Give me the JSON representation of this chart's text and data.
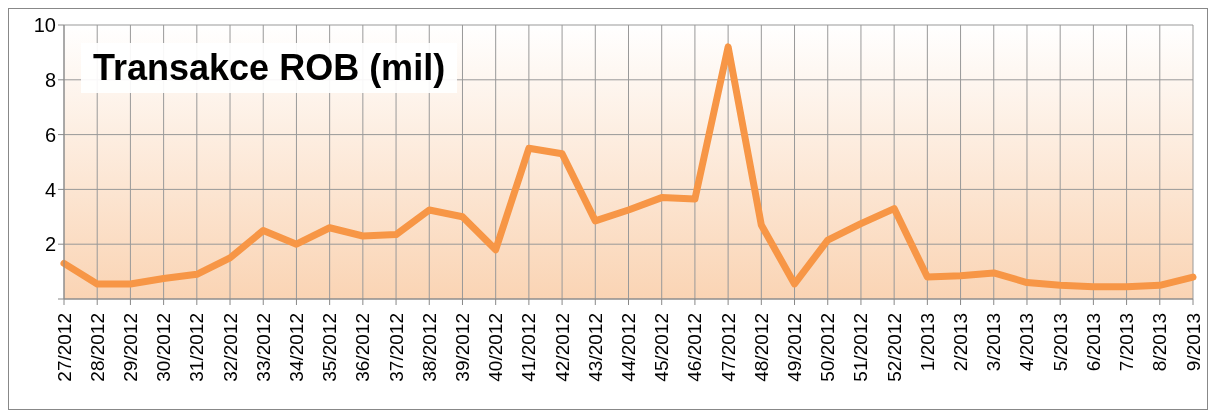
{
  "chart_data": {
    "type": "line",
    "title": "Transakce ROB (mil)",
    "categories": [
      "27/2012",
      "28/2012",
      "29/2012",
      "30/2012",
      "31/2012",
      "32/2012",
      "33/2012",
      "34/2012",
      "35/2012",
      "36/2012",
      "37/2012",
      "38/2012",
      "39/2012",
      "40/2012",
      "41/2012",
      "42/2012",
      "43/2012",
      "44/2012",
      "45/2012",
      "46/2012",
      "47/2012",
      "48/2012",
      "49/2012",
      "50/2012",
      "51/2012",
      "52/2012",
      "1/2013",
      "2/2013",
      "3/2013",
      "4/2013",
      "5/2013",
      "6/2013",
      "7/2013",
      "8/2013",
      "9/2013"
    ],
    "series": [
      {
        "color": "#f79646",
        "values": [
          1.3,
          0.55,
          0.55,
          0.75,
          0.9,
          1.5,
          2.5,
          2.0,
          2.6,
          2.3,
          2.35,
          3.25,
          3.0,
          1.8,
          5.5,
          5.3,
          2.85,
          3.25,
          3.7,
          3.65,
          9.2,
          2.7,
          0.55,
          2.15,
          2.75,
          3.3,
          0.8,
          0.85,
          0.95,
          0.6,
          0.5,
          0.45,
          0.45,
          0.5,
          0.8
        ]
      }
    ],
    "ylim": [
      0,
      10
    ],
    "yticks": [
      {
        "value": 0,
        "label": null
      },
      2,
      4,
      6,
      8,
      10
    ],
    "grid": true,
    "marker": "none",
    "line_style": "solid"
  }
}
